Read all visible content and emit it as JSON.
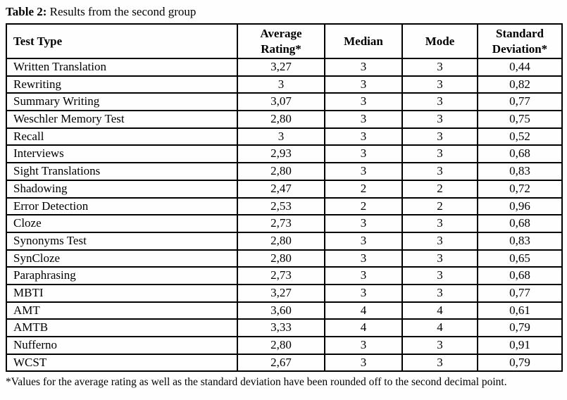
{
  "caption": {
    "label": "Table 2:",
    "text": " Results from the second group"
  },
  "table": {
    "columns": [
      {
        "key": "test",
        "label": "Test Type"
      },
      {
        "key": "avg",
        "label": "Average Rating*"
      },
      {
        "key": "median",
        "label": "Median"
      },
      {
        "key": "mode",
        "label": "Mode"
      },
      {
        "key": "sd",
        "label": "Standard Deviation*"
      }
    ],
    "rows": [
      {
        "test": "Written Translation",
        "avg": "3,27",
        "median": "3",
        "mode": "3",
        "sd": "0,44"
      },
      {
        "test": "Rewriting",
        "avg": "3",
        "median": "3",
        "mode": "3",
        "sd": "0,82"
      },
      {
        "test": "Summary Writing",
        "avg": "3,07",
        "median": "3",
        "mode": "3",
        "sd": "0,77"
      },
      {
        "test": "Weschler Memory Test",
        "avg": "2,80",
        "median": "3",
        "mode": "3",
        "sd": "0,75"
      },
      {
        "test": "Recall",
        "avg": "3",
        "median": "3",
        "mode": "3",
        "sd": "0,52"
      },
      {
        "test": "Interviews",
        "avg": "2,93",
        "median": "3",
        "mode": "3",
        "sd": "0,68"
      },
      {
        "test": "Sight Translations",
        "avg": "2,80",
        "median": "3",
        "mode": "3",
        "sd": "0,83"
      },
      {
        "test": "Shadowing",
        "avg": "2,47",
        "median": "2",
        "mode": "2",
        "sd": "0,72"
      },
      {
        "test": "Error Detection",
        "avg": "2,53",
        "median": "2",
        "mode": "2",
        "sd": "0,96"
      },
      {
        "test": "Cloze",
        "avg": "2,73",
        "median": "3",
        "mode": "3",
        "sd": "0,68"
      },
      {
        "test": "Synonyms Test",
        "avg": "2,80",
        "median": "3",
        "mode": "3",
        "sd": "0,83"
      },
      {
        "test": "SynCloze",
        "avg": "2,80",
        "median": "3",
        "mode": "3",
        "sd": "0,65"
      },
      {
        "test": "Paraphrasing",
        "avg": "2,73",
        "median": "3",
        "mode": "3",
        "sd": "0,68"
      },
      {
        "test": "MBTI",
        "avg": "3,27",
        "median": "3",
        "mode": "3",
        "sd": "0,77"
      },
      {
        "test": "AMT",
        "avg": "3,60",
        "median": "4",
        "mode": "4",
        "sd": "0,61"
      },
      {
        "test": "AMTB",
        "avg": "3,33",
        "median": "4",
        "mode": "4",
        "sd": "0,79"
      },
      {
        "test": "Nufferno",
        "avg": "2,80",
        "median": "3",
        "mode": "3",
        "sd": "0,91"
      },
      {
        "test": "WCST",
        "avg": "2,67",
        "median": "3",
        "mode": "3",
        "sd": "0,79"
      }
    ]
  },
  "footnote": "*Values for the average rating as well as the standard deviation have been rounded off to the second decimal point.",
  "colors": {
    "text": "#000000",
    "border": "#000000",
    "background": "#fefefe"
  }
}
